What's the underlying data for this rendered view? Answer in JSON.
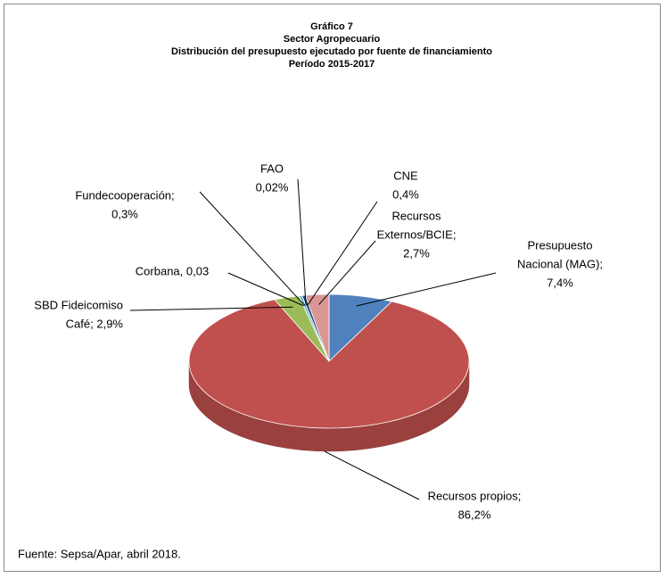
{
  "chart_data": {
    "type": "pie3d",
    "title": [
      "Gráfico 7",
      "Sector Agropecuario",
      "Distribución del presupuesto ejecutado por fuente de financiamiento",
      "Período 2015-2017"
    ],
    "values": [
      7.4,
      86.2,
      2.9,
      0.03,
      0.3,
      0.02,
      0.4,
      2.7
    ],
    "value_labels": [
      [
        "Presupuesto",
        "Nacional (MAG);",
        "7,4%"
      ],
      [
        "Recursos propios;",
        "86,2%"
      ],
      [
        "SBD Fideicomiso",
        "Café; 2,9%"
      ],
      [
        "Corbana, 0,03"
      ],
      [
        "Fundecooperación;",
        "0,3%"
      ],
      [
        "FAO",
        "0,02%"
      ],
      [
        "CNE",
        "0,4%"
      ],
      [
        "Recursos",
        "Externos/BCIE;",
        "2,7%"
      ]
    ],
    "colors": [
      "#4f81bd",
      "#c0504d",
      "#9bbb59",
      "#8064a2",
      "#4bacc6",
      "#f79646",
      "#1f497d",
      "#d99694"
    ],
    "source": "Fuente: Sepsa/Apar, abril 2018."
  }
}
